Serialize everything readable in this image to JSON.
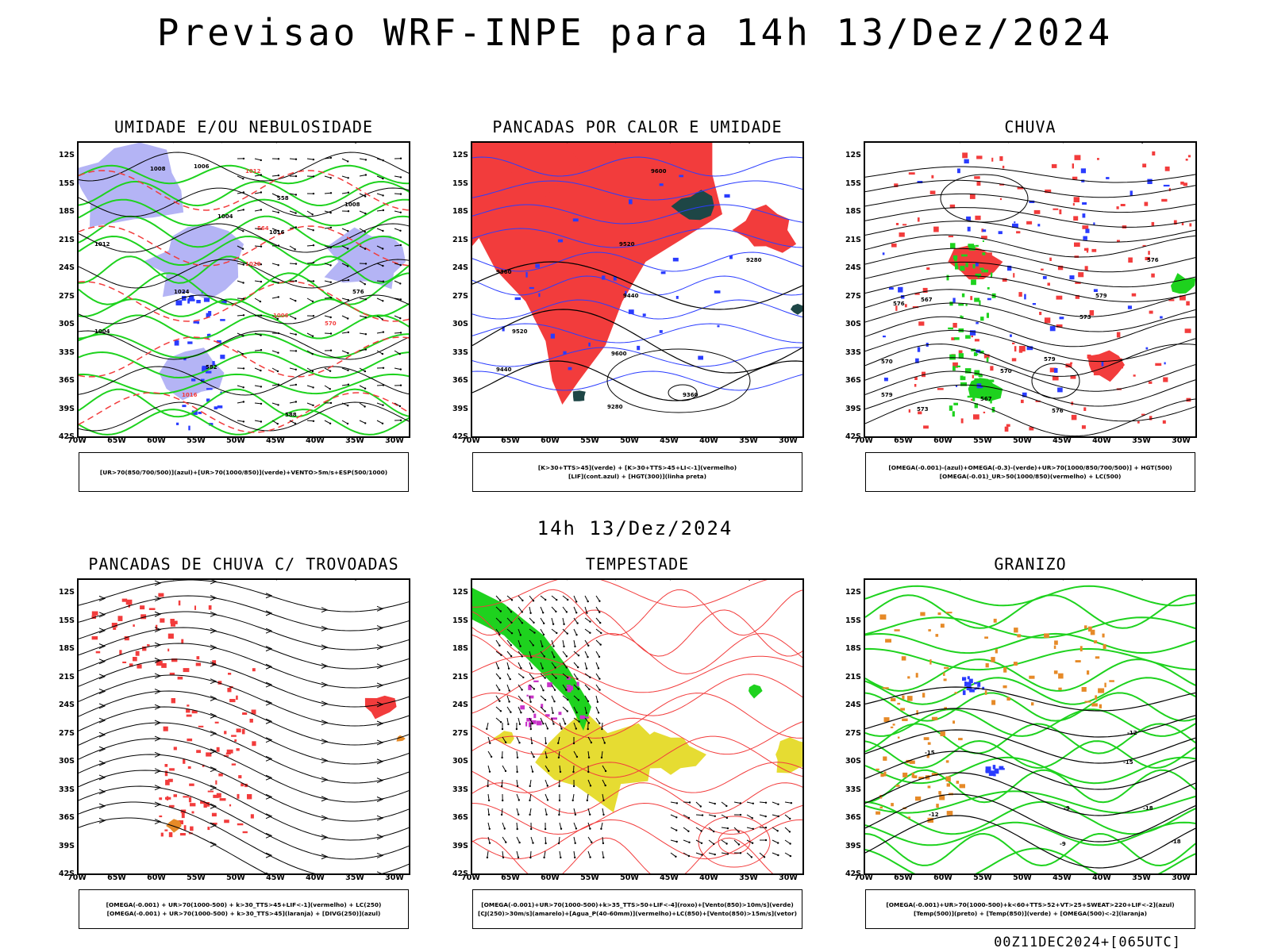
{
  "title": "Previsao WRF-INPE  para 14h 13/Dez/2024",
  "subtitle": "14h 13/Dez/2024",
  "footer": "00Z11DEC2024+[065UTC]",
  "lat_ticks": [
    "12S",
    "15S",
    "18S",
    "21S",
    "24S",
    "27S",
    "30S",
    "33S",
    "36S",
    "39S",
    "42S"
  ],
  "lon_ticks": [
    "70W",
    "65W",
    "60W",
    "55W",
    "50W",
    "45W",
    "40W",
    "35W",
    "30W"
  ],
  "colors": {
    "red": "#f23c3c",
    "green": "#1ed21e",
    "blue": "#2a3cff",
    "lavender": "#b4b4f5",
    "yellow": "#e6dc32",
    "orange": "#e68a28",
    "darkgreen": "#1e4646"
  },
  "panels": [
    {
      "id": "umidade",
      "title": "UMIDADE E/OU NEBULOSIDADE",
      "legend": [
        "[UR>70(850/700/500)](azul)+[UR>70(1000/850)](verde)+VENTO>5m/s+ESP(500/1000)"
      ],
      "contour_labels": [
        "1008",
        "1006",
        "1012",
        "1004",
        "1016",
        "1020",
        "1024",
        "576",
        "570",
        "582",
        "588",
        "564",
        "558"
      ]
    },
    {
      "id": "pancadas-calor",
      "title": "PANCADAS POR CALOR E UMIDADE",
      "legend": [
        "[K>30+TTS>45](verde) + [K>30+TTS>45+LI<-1](vermelho)",
        "[LIF](cont.azul) + [HGT(300)](linha preta)"
      ],
      "contour_labels": [
        "9600",
        "9520",
        "9440",
        "9360",
        "9280"
      ]
    },
    {
      "id": "chuva",
      "title": "CHUVA",
      "legend": [
        "[OMEGA(-0.001)-(azul)+OMEGA(-0.3)-(verde)+UR>70(1000/850/700/500)] + HGT(500)",
        "[OMEGA(-0.01)_UR>50(1000/850)(vermelho) + LC(500)"
      ],
      "contour_labels": [
        "576",
        "579",
        "573",
        "570",
        "567"
      ]
    },
    {
      "id": "pancadas-trovoadas",
      "title": "PANCADAS DE CHUVA C/ TROVOADAS",
      "legend": [
        "[OMEGA(-0.001) + UR>70(1000-500) + k>30_TTS>45+LIF<-1](vermelho) + LC(250)",
        "[OMEGA(-0.001) + UR>70(1000-500) + k>30_TTS>45](laranja) + [DIVG(250)](azul)"
      ],
      "contour_labels": []
    },
    {
      "id": "tempestade",
      "title": "TEMPESTADE",
      "legend": [
        "[OMEGA(-0.001)+UR>70(1000-500)+k>35_TTS>50+LIF<-4](roxo)+[Vento(850)>10m/s](verde)",
        "[CJ(250)>30m/s](amarelo)+[Agua_P(40-60mm)](vermelho)+LC(850)+[Vento(850)>15m/s](vetor)"
      ],
      "contour_labels": []
    },
    {
      "id": "granizo",
      "title": "GRANIZO",
      "legend": [
        "[OMEGA(-0.001)+UR>70(1000-500)+k<60+TTS>52+VT>25+SWEAT>220+LIF<-2](azul)",
        "[Temp(500)](preto) + [Temp(850)](verde) + [OMEGA(500)<-2](laranja)"
      ],
      "contour_labels": [
        "-12",
        "-15",
        "-18",
        "-9"
      ]
    }
  ]
}
